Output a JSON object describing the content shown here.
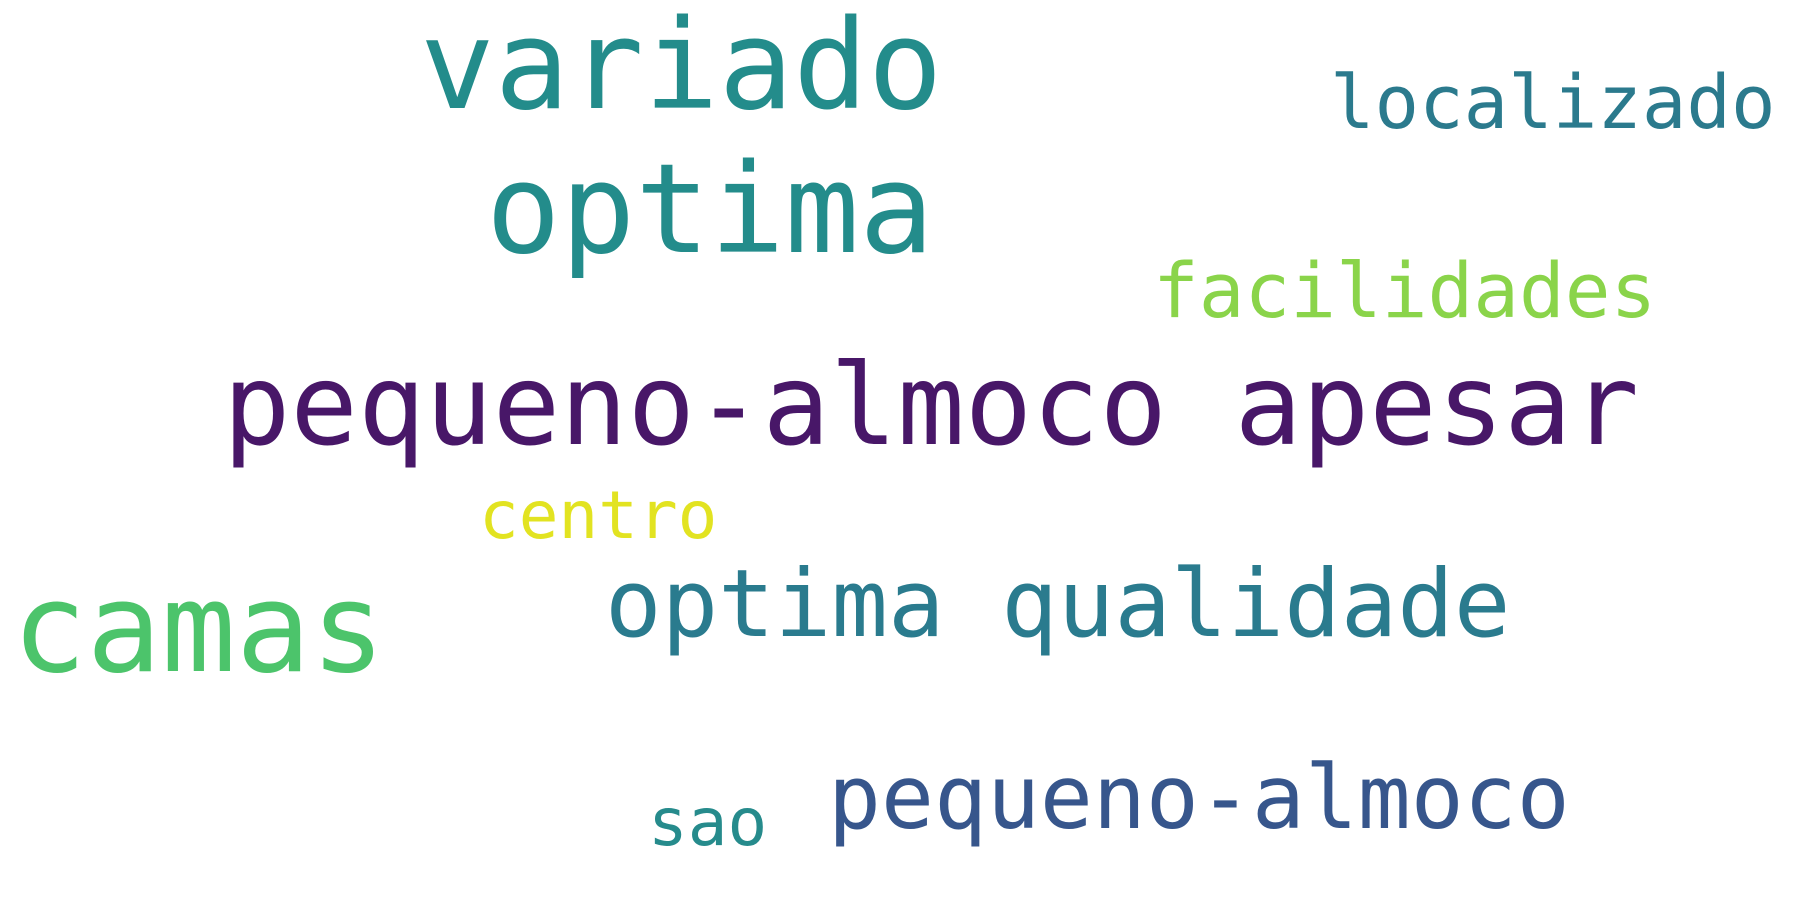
{
  "background_color": "#ffffff",
  "words": {
    "variado": {
      "text": "variado",
      "color": "#238c8b"
    },
    "localizado": {
      "text": "localizado",
      "color": "#2b7a8d"
    },
    "optima": {
      "text": "optima",
      "color": "#238c8b"
    },
    "facilidades": {
      "text": "facilidades",
      "color": "#8ad44a"
    },
    "pequeno_apesar": {
      "text": "pequeno-almoco apesar",
      "color": "#481768"
    },
    "centro": {
      "text": "centro",
      "color": "#e2e321"
    },
    "optima_qualidade": {
      "text": "optima qualidade",
      "color": "#2a7b8e"
    },
    "camas": {
      "text": "camas",
      "color": "#4cc46b"
    },
    "sao": {
      "text": "sao",
      "color": "#268b8c"
    },
    "pequeno": {
      "text": "pequeno-almoco",
      "color": "#37568c"
    }
  }
}
